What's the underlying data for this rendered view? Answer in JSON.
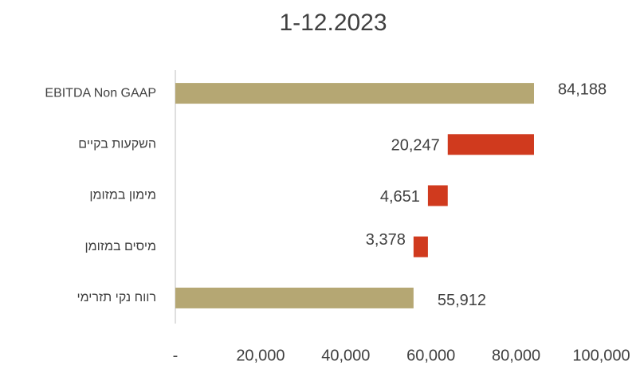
{
  "chart_data": {
    "type": "waterfall",
    "title": "1-12.2023",
    "categories": [
      "EBITDA Non GAAP",
      "השקעות בקיים",
      "מימון במזומן",
      "מיסים במזומן",
      "רווח נקי תזרימי"
    ],
    "values": [
      84188,
      20247,
      4651,
      3378,
      55912
    ],
    "value_labels": [
      "84,188",
      "20,247",
      "4,651",
      "3,378",
      "55,912"
    ],
    "measure": [
      "absolute",
      "decrease",
      "decrease",
      "decrease",
      "absolute"
    ],
    "colors": [
      "#b5a773",
      "#d03a1e",
      "#d03a1e",
      "#d03a1e",
      "#b5a773"
    ],
    "xlim": [
      0,
      100000
    ],
    "xticks": [
      {
        "value": 0,
        "label": "-"
      },
      {
        "value": 20000,
        "label": "20,000"
      },
      {
        "value": 40000,
        "label": "40,000"
      },
      {
        "value": 60000,
        "label": "60,000"
      },
      {
        "value": 80000,
        "label": "80,000"
      },
      {
        "value": 100000,
        "label": "100,000"
      }
    ],
    "grid": false
  }
}
